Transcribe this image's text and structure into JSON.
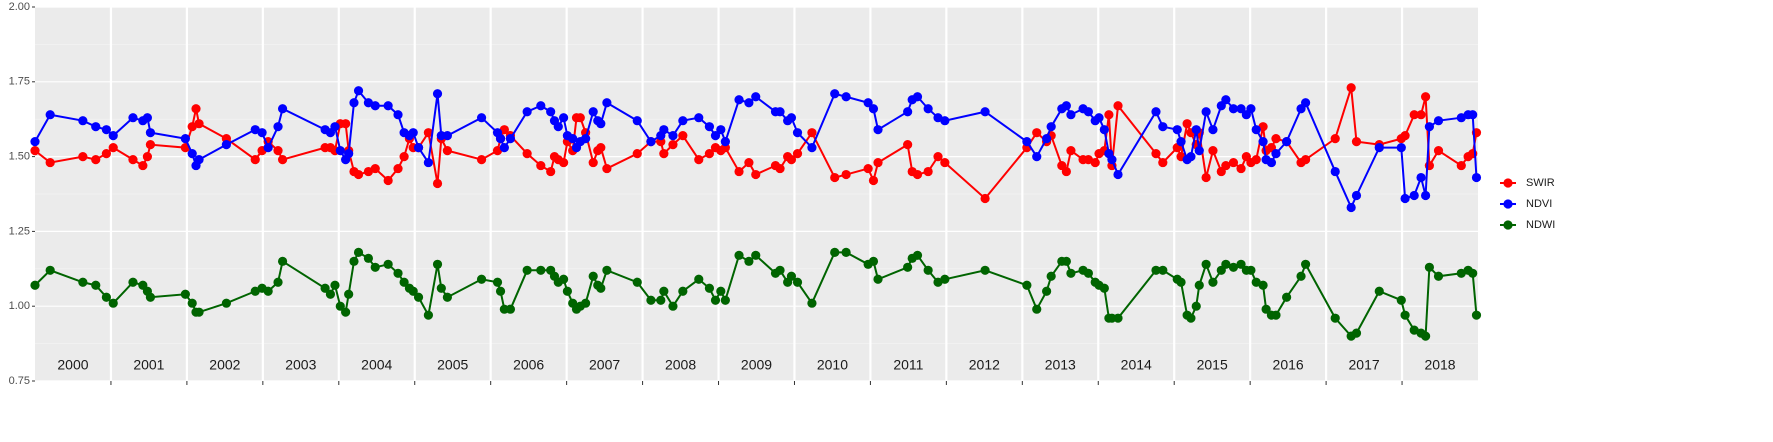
{
  "chart_data": {
    "type": "line",
    "x": [
      2000.0,
      2000.2,
      2000.63,
      2000.8,
      2000.94,
      2001.03,
      2001.29,
      2001.42,
      2001.48,
      2001.52,
      2001.98,
      2002.07,
      2002.12,
      2002.16,
      2002.52,
      2002.9,
      2002.99,
      2003.07,
      2003.2,
      2003.26,
      2003.82,
      2003.89,
      2003.95,
      2004.02,
      2004.09,
      2004.13,
      2004.2,
      2004.26,
      2004.39,
      2004.48,
      2004.65,
      2004.78,
      2004.86,
      2004.93,
      2004.98,
      2005.05,
      2005.18,
      2005.3,
      2005.35,
      2005.43,
      2005.88,
      2006.09,
      2006.13,
      2006.18,
      2006.26,
      2006.48,
      2006.66,
      2006.79,
      2006.84,
      2006.89,
      2006.96,
      2007.01,
      2007.08,
      2007.13,
      2007.18,
      2007.25,
      2007.35,
      2007.41,
      2007.45,
      2007.53,
      2007.93,
      2008.11,
      2008.24,
      2008.28,
      2008.4,
      2008.53,
      2008.74,
      2008.88,
      2008.96,
      2009.03,
      2009.09,
      2009.27,
      2009.4,
      2009.49,
      2009.75,
      2009.81,
      2009.91,
      2009.96,
      2010.04,
      2010.23,
      2010.53,
      2010.68,
      2010.97,
      2011.04,
      2011.1,
      2011.49,
      2011.55,
      2011.62,
      2011.76,
      2011.89,
      2011.98,
      2012.51,
      2013.06,
      2013.19,
      2013.32,
      2013.38,
      2013.52,
      2013.58,
      2013.64,
      2013.8,
      2013.87,
      2013.96,
      2014.01,
      2014.08,
      2014.14,
      2014.18,
      2014.26,
      2014.76,
      2014.85,
      2015.04,
      2015.09,
      2015.17,
      2015.22,
      2015.29,
      2015.33,
      2015.42,
      2015.51,
      2015.62,
      2015.68,
      2015.78,
      2015.88,
      2015.95,
      2016.01,
      2016.08,
      2016.17,
      2016.21,
      2016.28,
      2016.34,
      2016.48,
      2016.67,
      2016.73,
      2017.12,
      2017.33,
      2017.4,
      2017.7,
      2017.99,
      2018.04,
      2018.16,
      2018.25,
      2018.31,
      2018.36,
      2018.48,
      2018.78,
      2018.87,
      2018.93,
      2018.98
    ],
    "series": [
      {
        "name": "SWIR",
        "color": "#ff0000",
        "values": [
          1.52,
          1.48,
          1.5,
          1.49,
          1.51,
          1.53,
          1.49,
          1.47,
          1.5,
          1.54,
          1.53,
          1.6,
          1.66,
          1.61,
          1.56,
          1.49,
          1.52,
          1.55,
          1.52,
          1.49,
          1.53,
          1.53,
          1.52,
          1.61,
          1.61,
          1.52,
          1.45,
          1.44,
          1.45,
          1.46,
          1.42,
          1.46,
          1.5,
          1.56,
          1.53,
          1.53,
          1.58,
          1.41,
          1.56,
          1.52,
          1.49,
          1.52,
          1.56,
          1.59,
          1.57,
          1.51,
          1.47,
          1.45,
          1.5,
          1.49,
          1.48,
          1.55,
          1.52,
          1.63,
          1.63,
          1.58,
          1.48,
          1.52,
          1.53,
          1.46,
          1.51,
          1.55,
          1.55,
          1.51,
          1.54,
          1.57,
          1.49,
          1.51,
          1.53,
          1.52,
          1.53,
          1.45,
          1.48,
          1.44,
          1.47,
          1.46,
          1.5,
          1.49,
          1.51,
          1.58,
          1.43,
          1.44,
          1.46,
          1.42,
          1.48,
          1.54,
          1.45,
          1.44,
          1.45,
          1.5,
          1.48,
          1.36,
          1.53,
          1.58,
          1.55,
          1.57,
          1.47,
          1.45,
          1.52,
          1.49,
          1.49,
          1.48,
          1.51,
          1.52,
          1.64,
          1.47,
          1.67,
          1.51,
          1.48,
          1.53,
          1.5,
          1.61,
          1.58,
          1.54,
          1.58,
          1.43,
          1.52,
          1.45,
          1.47,
          1.48,
          1.46,
          1.5,
          1.48,
          1.49,
          1.6,
          1.52,
          1.53,
          1.56,
          1.55,
          1.48,
          1.49,
          1.56,
          1.73,
          1.55,
          1.54,
          1.56,
          1.57,
          1.64,
          1.64,
          1.7,
          1.47,
          1.52,
          1.47,
          1.5,
          1.51,
          1.58
        ]
      },
      {
        "name": "NDVI",
        "color": "#0000ff",
        "values": [
          1.55,
          1.64,
          1.62,
          1.6,
          1.59,
          1.57,
          1.63,
          1.62,
          1.63,
          1.58,
          1.56,
          1.51,
          1.47,
          1.49,
          1.54,
          1.59,
          1.58,
          1.53,
          1.6,
          1.66,
          1.59,
          1.58,
          1.6,
          1.52,
          1.49,
          1.51,
          1.68,
          1.72,
          1.68,
          1.67,
          1.67,
          1.64,
          1.58,
          1.57,
          1.58,
          1.53,
          1.48,
          1.71,
          1.57,
          1.57,
          1.63,
          1.58,
          1.56,
          1.53,
          1.56,
          1.65,
          1.67,
          1.65,
          1.62,
          1.6,
          1.63,
          1.57,
          1.56,
          1.53,
          1.55,
          1.56,
          1.65,
          1.62,
          1.61,
          1.68,
          1.62,
          1.55,
          1.57,
          1.59,
          1.57,
          1.62,
          1.63,
          1.6,
          1.57,
          1.59,
          1.55,
          1.69,
          1.68,
          1.7,
          1.65,
          1.65,
          1.62,
          1.63,
          1.58,
          1.53,
          1.71,
          1.7,
          1.68,
          1.66,
          1.59,
          1.65,
          1.69,
          1.7,
          1.66,
          1.63,
          1.62,
          1.65,
          1.55,
          1.5,
          1.56,
          1.6,
          1.66,
          1.67,
          1.64,
          1.66,
          1.65,
          1.62,
          1.63,
          1.59,
          1.51,
          1.49,
          1.44,
          1.65,
          1.6,
          1.59,
          1.55,
          1.49,
          1.5,
          1.59,
          1.52,
          1.65,
          1.59,
          1.67,
          1.69,
          1.66,
          1.66,
          1.64,
          1.66,
          1.59,
          1.55,
          1.49,
          1.48,
          1.51,
          1.55,
          1.66,
          1.68,
          1.45,
          1.33,
          1.37,
          1.53,
          1.53,
          1.36,
          1.37,
          1.43,
          1.37,
          1.6,
          1.62,
          1.63,
          1.64,
          1.64,
          1.43
        ]
      },
      {
        "name": "NDWI",
        "color": "#006400",
        "values": [
          1.07,
          1.12,
          1.08,
          1.07,
          1.03,
          1.01,
          1.08,
          1.07,
          1.05,
          1.03,
          1.04,
          1.01,
          0.98,
          0.98,
          1.01,
          1.05,
          1.06,
          1.05,
          1.08,
          1.15,
          1.06,
          1.04,
          1.07,
          1.0,
          0.98,
          1.04,
          1.15,
          1.18,
          1.16,
          1.13,
          1.14,
          1.11,
          1.08,
          1.06,
          1.05,
          1.03,
          0.97,
          1.14,
          1.06,
          1.03,
          1.09,
          1.08,
          1.05,
          0.99,
          0.99,
          1.12,
          1.12,
          1.12,
          1.1,
          1.08,
          1.09,
          1.05,
          1.01,
          0.99,
          1.0,
          1.01,
          1.1,
          1.07,
          1.06,
          1.12,
          1.08,
          1.02,
          1.02,
          1.05,
          1.0,
          1.05,
          1.09,
          1.06,
          1.02,
          1.05,
          1.02,
          1.17,
          1.15,
          1.17,
          1.11,
          1.12,
          1.08,
          1.1,
          1.08,
          1.01,
          1.18,
          1.18,
          1.14,
          1.15,
          1.09,
          1.13,
          1.16,
          1.17,
          1.12,
          1.08,
          1.09,
          1.12,
          1.07,
          0.99,
          1.05,
          1.1,
          1.15,
          1.15,
          1.11,
          1.12,
          1.11,
          1.08,
          1.07,
          1.06,
          0.96,
          0.96,
          0.96,
          1.12,
          1.12,
          1.09,
          1.08,
          0.97,
          0.96,
          1.0,
          1.07,
          1.14,
          1.08,
          1.12,
          1.14,
          1.13,
          1.14,
          1.12,
          1.12,
          1.08,
          1.07,
          0.99,
          0.97,
          0.97,
          1.03,
          1.1,
          1.14,
          0.96,
          0.9,
          0.91,
          1.05,
          1.02,
          0.97,
          0.92,
          0.91,
          0.9,
          1.13,
          1.1,
          1.11,
          1.12,
          1.11,
          0.97
        ]
      }
    ],
    "xlim": [
      2000,
      2019
    ],
    "xticks": [
      2001,
      2002,
      2003,
      2004,
      2005,
      2006,
      2007,
      2008,
      2009,
      2010,
      2011,
      2012,
      2013,
      2014,
      2015,
      2016,
      2017,
      2018
    ],
    "year_labels": [
      "2000",
      "2001",
      "2002",
      "2003",
      "2004",
      "2005",
      "2006",
      "2007",
      "2008",
      "2009",
      "2010",
      "2011",
      "2012",
      "2013",
      "2014",
      "2015",
      "2016",
      "2017",
      "2018"
    ],
    "ylim": [
      0.75,
      2.0
    ],
    "yticks": [
      0.75,
      {
        "value": 1.0,
        "label": "1.00"
      },
      1.25,
      {
        "value": 1.5,
        "label": "1.50"
      },
      1.75,
      {
        "value": 2.0,
        "label": "2.00"
      }
    ],
    "grid": true,
    "legend": "right"
  }
}
